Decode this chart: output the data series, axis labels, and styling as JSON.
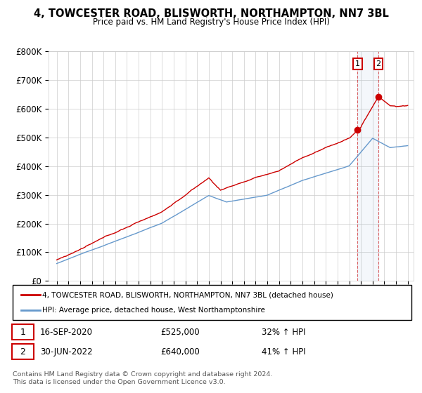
{
  "title": "4, TOWCESTER ROAD, BLISWORTH, NORTHAMPTON, NN7 3BL",
  "subtitle": "Price paid vs. HM Land Registry's House Price Index (HPI)",
  "legend_label_red": "4, TOWCESTER ROAD, BLISWORTH, NORTHAMPTON, NN7 3BL (detached house)",
  "legend_label_blue": "HPI: Average price, detached house, West Northamptonshire",
  "footer": "Contains HM Land Registry data © Crown copyright and database right 2024.\nThis data is licensed under the Open Government Licence v3.0.",
  "annotation1_label": "1",
  "annotation1_date": "16-SEP-2020",
  "annotation1_price": "£525,000",
  "annotation1_hpi": "32% ↑ HPI",
  "annotation2_label": "2",
  "annotation2_date": "30-JUN-2022",
  "annotation2_price": "£640,000",
  "annotation2_hpi": "41% ↑ HPI",
  "ylim": [
    0,
    800000
  ],
  "yticks": [
    0,
    100000,
    200000,
    300000,
    400000,
    500000,
    600000,
    700000,
    800000
  ],
  "ytick_labels": [
    "£0",
    "£100K",
    "£200K",
    "£300K",
    "£400K",
    "£500K",
    "£600K",
    "£700K",
    "£800K"
  ],
  "red_color": "#cc0000",
  "blue_color": "#6699cc",
  "bg_color": "#ffffff",
  "grid_color": "#cccccc",
  "annotation_box_color": "#cc0000",
  "transaction1_x": 2020.71,
  "transaction1_y": 525000,
  "transaction2_x": 2022.5,
  "transaction2_y": 640000,
  "xlim_left": 1994.3,
  "xlim_right": 2025.5
}
